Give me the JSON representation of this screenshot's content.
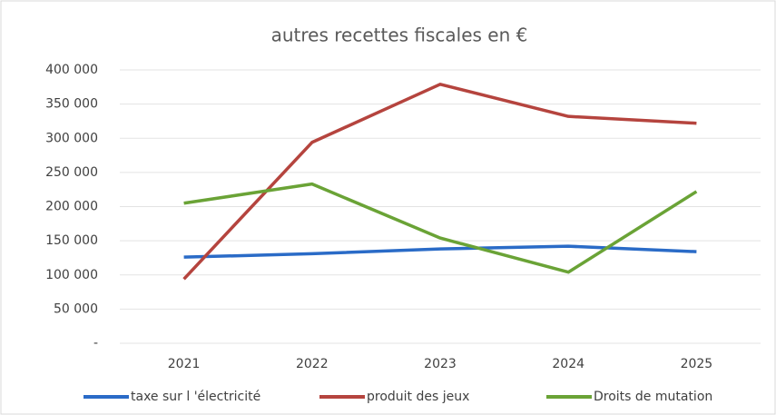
{
  "chart_data": {
    "type": "line",
    "title": "autres recettes fiscales en €",
    "categories": [
      "2021",
      "2022",
      "2023",
      "2024",
      "2025"
    ],
    "series": [
      {
        "name": "taxe sur l 'électricité",
        "color": "#2a6bc7",
        "values": [
          126000,
          131000,
          138000,
          142000,
          134000
        ]
      },
      {
        "name": "produit des jeux",
        "color": "#b5443e",
        "values": [
          94000,
          294000,
          379000,
          332000,
          322000
        ]
      },
      {
        "name": "Droits de mutation",
        "color": "#6aa336",
        "values": [
          205000,
          233000,
          154000,
          104000,
          222000
        ]
      }
    ],
    "ylim": [
      0,
      400000
    ],
    "yticks": [
      {
        "value": 0,
        "label": "-"
      },
      {
        "value": 50000,
        "label": "50 000"
      },
      {
        "value": 100000,
        "label": "100 000"
      },
      {
        "value": 150000,
        "label": "150 000"
      },
      {
        "value": 200000,
        "label": "200 000"
      },
      {
        "value": 250000,
        "label": "250 000"
      },
      {
        "value": 300000,
        "label": "300 000"
      },
      {
        "value": 350000,
        "label": "350 000"
      },
      {
        "value": 400000,
        "label": "400 000"
      }
    ],
    "grid": true,
    "legend": "bottom"
  }
}
